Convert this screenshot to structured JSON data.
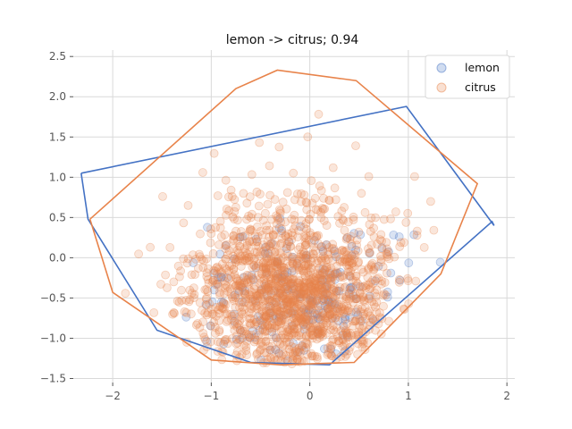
{
  "chart_data": {
    "type": "scatter",
    "title": "lemon -> citrus; 0.94",
    "xlabel": "",
    "ylabel": "",
    "xlim": [
      -2.4,
      2.08
    ],
    "ylim": [
      -1.55,
      2.58
    ],
    "xticks": [
      -2,
      -1,
      0,
      1,
      2
    ],
    "yticks": [
      -1.5,
      -1.0,
      -0.5,
      0.0,
      0.5,
      1.0,
      1.5,
      2.0,
      2.5
    ],
    "xtick_labels": [
      "−2",
      "−1",
      "0",
      "1",
      "2"
    ],
    "ytick_labels": [
      "−1.5",
      "−1.0",
      "−0.5",
      "0.0",
      "0.5",
      "1.0",
      "1.5",
      "2.0",
      "2.5"
    ],
    "grid": true,
    "legend_position": "top-right",
    "series": [
      {
        "name": "lemon",
        "color": "#4472c4",
        "marker_alpha": 0.2,
        "points_generated": {
          "count": 200,
          "seed": 7,
          "cx": -0.1,
          "cy": -0.55,
          "sx": 0.55,
          "sy": 0.5
        },
        "hull": [
          [
            -2.32,
            1.05
          ],
          [
            0.98,
            1.88
          ],
          [
            1.87,
            0.4
          ],
          [
            1.85,
            0.45
          ],
          [
            0.2,
            -1.33
          ],
          [
            -0.6,
            -1.3
          ],
          [
            -1.55,
            -0.9
          ],
          [
            -2.25,
            0.48
          ],
          [
            -2.32,
            1.05
          ]
        ]
      },
      {
        "name": "citrus",
        "color": "#e8834a",
        "marker_alpha": 0.2,
        "points_generated": {
          "count": 1500,
          "seed": 13,
          "cx": -0.15,
          "cy": -0.45,
          "sx": 0.55,
          "sy": 0.55
        },
        "hull": [
          [
            -2.23,
            0.48
          ],
          [
            -0.75,
            2.1
          ],
          [
            -0.33,
            2.33
          ],
          [
            0.47,
            2.2
          ],
          [
            1.7,
            0.92
          ],
          [
            1.33,
            -0.2
          ],
          [
            0.45,
            -1.3
          ],
          [
            -0.3,
            -1.33
          ],
          [
            -1.0,
            -1.27
          ],
          [
            -2.0,
            -0.43
          ],
          [
            -2.23,
            0.48
          ]
        ]
      }
    ]
  }
}
